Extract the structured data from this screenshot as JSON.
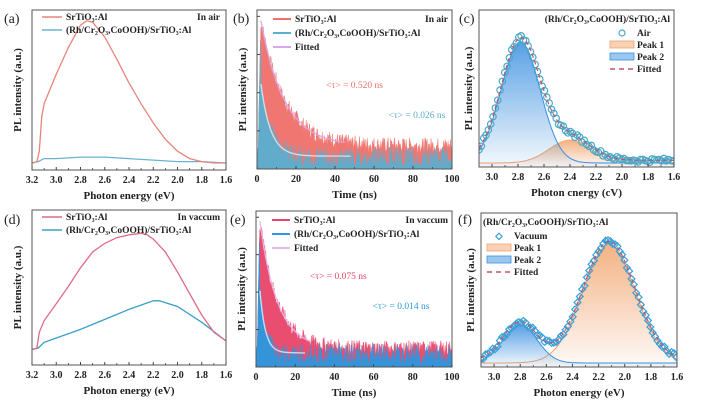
{
  "chart_data": [
    {
      "id": "a",
      "type": "line",
      "panel_label": "(a)",
      "condition": "In air",
      "xlabel": "Photon energy (eV)",
      "ylabel": "PL intensity (a.u.)",
      "xlim": [
        3.2,
        1.6
      ],
      "ylim": [
        0,
        1
      ],
      "x_reversed": true,
      "xticks": [
        "3.2",
        "3.0",
        "2.8",
        "2.6",
        "2.4",
        "2.2",
        "2.0",
        "1.8",
        "1.6"
      ],
      "legend_position": "top-left",
      "series": [
        {
          "name": "SrTiO3:Al",
          "label": "SrTiO₃:Al",
          "color": "#e8857a",
          "x": [
            3.2,
            3.16,
            3.14,
            3.12,
            3.1,
            3.0,
            2.9,
            2.8,
            2.75,
            2.7,
            2.6,
            2.5,
            2.4,
            2.3,
            2.2,
            2.1,
            2.0,
            1.9,
            1.8,
            1.7,
            1.6
          ],
          "y": [
            0.02,
            0.03,
            0.1,
            0.33,
            0.42,
            0.62,
            0.8,
            0.95,
            0.98,
            0.97,
            0.87,
            0.72,
            0.56,
            0.42,
            0.29,
            0.18,
            0.1,
            0.05,
            0.03,
            0.02,
            0.02
          ]
        },
        {
          "name": "(Rh/Cr2O3,CoOOH)/SrTiO3:Al",
          "label": "(Rh/Cr₂O₃,CoOOH)/SrTiO₃:Al",
          "color": "#6ab4cf",
          "x": [
            3.2,
            3.15,
            3.1,
            3.0,
            2.8,
            2.6,
            2.4,
            2.2,
            2.0,
            1.8,
            1.6
          ],
          "y": [
            0.02,
            0.03,
            0.05,
            0.05,
            0.06,
            0.06,
            0.05,
            0.04,
            0.03,
            0.03,
            0.02
          ]
        }
      ]
    },
    {
      "id": "b",
      "type": "line",
      "panel_label": "(b)",
      "condition": "In air",
      "xlabel": "Time (ns)",
      "ylabel": "PL intensity (a.u.)",
      "xlim": [
        0,
        100
      ],
      "ylim": [
        0,
        1
      ],
      "xticks": [
        "0",
        "20",
        "40",
        "60",
        "80",
        "100"
      ],
      "legend_position": "top",
      "series": [
        {
          "name": "SrTiO3:Al",
          "label": "SrTiO₃:Al",
          "color": "#f0706a",
          "tau_ns": 0.52,
          "noise_floor": 0.13
        },
        {
          "name": "(Rh/Cr2O3,CoOOH)/SrTiO3:Al",
          "label": "(Rh/Cr₂O₃,CoOOH)/SrTiO₃:Al",
          "color": "#5aaed0",
          "tau_ns": 0.026,
          "noise_floor": 0.06
        },
        {
          "name": "Fitted",
          "label": "Fitted",
          "color": "#d9a6e6"
        }
      ],
      "annotations": [
        {
          "text": "<τ> = 0.520 ns",
          "color": "#f0706a"
        },
        {
          "text": "<τ> = 0.026 ns",
          "color": "#5aaed0"
        }
      ]
    },
    {
      "id": "c",
      "type": "area",
      "panel_label": "(c)",
      "title": "(Rh/Cr₂O₃,CoOOH)/SrTiO₃:Al",
      "xlabel": "Photon cnergy (cV)",
      "ylabel": "PL intensity (a.u.)",
      "xlim": [
        3.1,
        1.6
      ],
      "ylim": [
        0,
        1
      ],
      "x_reversed": true,
      "xticks": [
        "3.0",
        "2.8",
        "2.6",
        "2.4",
        "2.2",
        "2.0",
        "1.8",
        "1.6"
      ],
      "legend_position": "top-right",
      "series": [
        {
          "name": "Air",
          "kind": "markers-circle",
          "color": "#4aa8c8"
        },
        {
          "name": "Peak 1",
          "kind": "gaussian-fill",
          "color": "#f2a46e",
          "center_eV": 2.4,
          "height": 0.17,
          "width_eV": 0.32
        },
        {
          "name": "Peak 2",
          "kind": "gaussian-fill",
          "color": "#3a8fe0",
          "center_eV": 2.78,
          "height": 0.9,
          "width_eV": 0.3
        },
        {
          "name": "Fitted",
          "kind": "dashed-line",
          "color": "#c0556a"
        }
      ]
    },
    {
      "id": "d",
      "type": "line",
      "panel_label": "(d)",
      "condition": "In vaccum",
      "xlabel": "Photon energy (eV)",
      "ylabel": "PL intensity (a.u.)",
      "xlim": [
        3.2,
        1.6
      ],
      "ylim": [
        0,
        1
      ],
      "x_reversed": true,
      "xticks": [
        "3.2",
        "3.0",
        "2.8",
        "2.6",
        "2.4",
        "2.2",
        "2.0",
        "1.8",
        "1.6"
      ],
      "legend_position": "top-left",
      "series": [
        {
          "name": "SrTiO3:Al",
          "label": "SrTiO₃:Al",
          "color": "#e06a86",
          "x": [
            3.2,
            3.16,
            3.14,
            3.1,
            3.0,
            2.9,
            2.8,
            2.7,
            2.6,
            2.5,
            2.4,
            2.3,
            2.25,
            2.2,
            2.1,
            2.0,
            1.9,
            1.8,
            1.7,
            1.6
          ],
          "y": [
            0.08,
            0.09,
            0.2,
            0.28,
            0.4,
            0.52,
            0.65,
            0.76,
            0.82,
            0.86,
            0.88,
            0.89,
            0.88,
            0.85,
            0.76,
            0.62,
            0.47,
            0.32,
            0.2,
            0.14
          ]
        },
        {
          "name": "(Rh/Cr2O3,CoOOH)/SrTiO3:Al",
          "label": "(Rh/Cr₂O₃,CoOOH)/SrTiO₃:Al",
          "color": "#3a9fc8",
          "x": [
            3.2,
            3.15,
            3.1,
            3.0,
            2.8,
            2.6,
            2.4,
            2.2,
            2.15,
            2.0,
            1.8,
            1.6
          ],
          "y": [
            0.08,
            0.09,
            0.13,
            0.16,
            0.22,
            0.29,
            0.36,
            0.42,
            0.42,
            0.38,
            0.27,
            0.14
          ]
        }
      ]
    },
    {
      "id": "e",
      "type": "line",
      "panel_label": "(e)",
      "condition": "In vaccum",
      "xlabel": "Time (ns)",
      "ylabel": "PL intensity (a.u.)",
      "xlim": [
        0,
        100
      ],
      "ylim": [
        0,
        1
      ],
      "xticks": [
        "0",
        "20",
        "40",
        "60",
        "80",
        "100"
      ],
      "legend_position": "top",
      "series": [
        {
          "name": "SrTiO3:Al",
          "label": "SrTiO₃:Al",
          "color": "#e8456a",
          "tau_ns": 0.075,
          "noise_floor": 0.1
        },
        {
          "name": "(Rh/Cr2O3,CoOOH)/SrTiO3:Al",
          "label": "(Rh/Cr₂O₃,CoOOH)/SrTiO₃:Al",
          "color": "#2a98e0",
          "tau_ns": 0.014,
          "noise_floor": 0.07
        },
        {
          "name": "Fitted",
          "label": "Fitted",
          "color": "#e7b8ef"
        }
      ],
      "annotations": [
        {
          "text": "<τ> = 0.075 ns",
          "color": "#e8456a"
        },
        {
          "text": "<τ> = 0.014 ns",
          "color": "#2a98e0"
        }
      ]
    },
    {
      "id": "f",
      "type": "area",
      "panel_label": "(f)",
      "title": "(Rh/Cr₂O₃,CoOOH)/SrTiO₃:Al",
      "xlabel": "Photon energy (eV)",
      "ylabel": "PL intensity (a.u.)",
      "xlim": [
        3.1,
        1.6
      ],
      "ylim": [
        0,
        1
      ],
      "x_reversed": true,
      "xticks": [
        "3.0",
        "2.8",
        "2.6",
        "2.4",
        "2.2",
        "2.0",
        "1.8",
        "1.6"
      ],
      "legend_position": "top-left",
      "series": [
        {
          "name": "Vacuum",
          "kind": "markers-diamond",
          "color": "#3aa0d8"
        },
        {
          "name": "Peak 1",
          "kind": "gaussian-fill",
          "color": "#f2a46e",
          "center_eV": 2.12,
          "height": 0.9,
          "width_eV": 0.4
        },
        {
          "name": "Peak 2",
          "kind": "gaussian-fill",
          "color": "#3a8fe0",
          "center_eV": 2.8,
          "height": 0.29,
          "width_eV": 0.26
        },
        {
          "name": "Fitted",
          "kind": "dashed-line",
          "color": "#c0556a"
        }
      ]
    }
  ]
}
